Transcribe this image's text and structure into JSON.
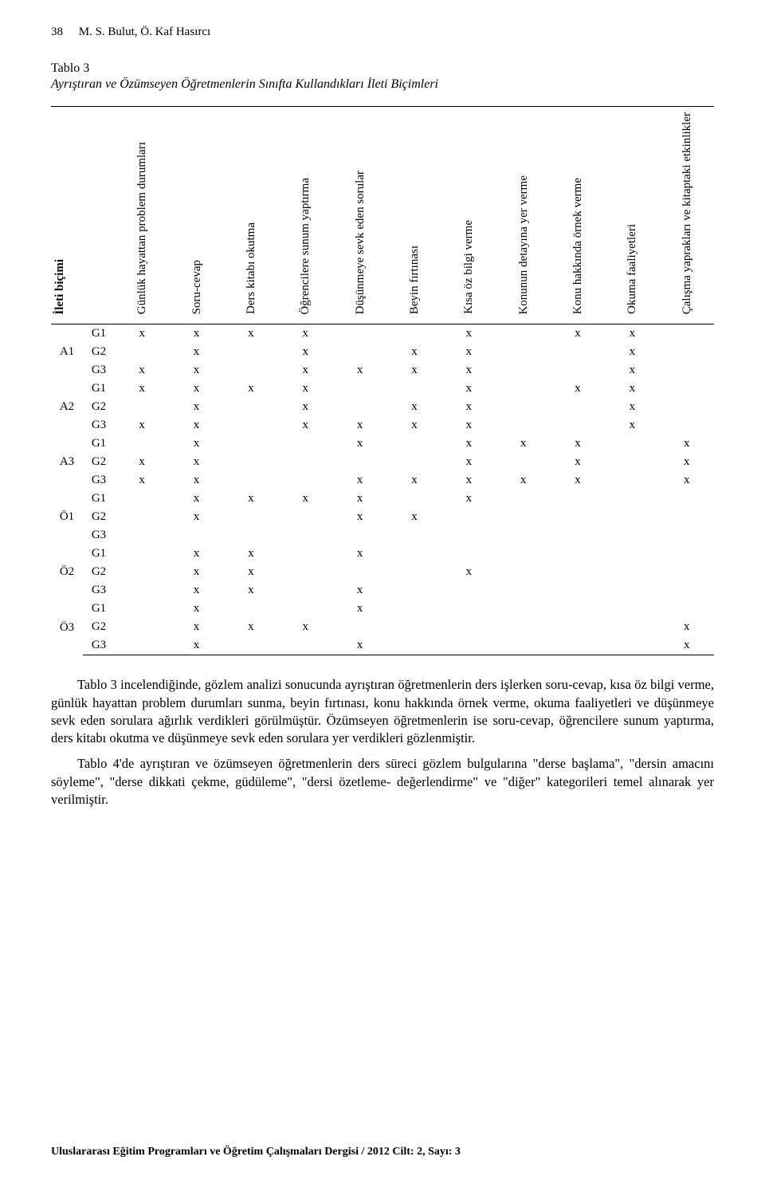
{
  "header": {
    "page_number": "38",
    "authors": "M. S. Bulut, Ö. Kaf Hasırcı"
  },
  "table": {
    "label": "Tablo 3",
    "title": "Ayrıştıran ve Özümseyen Öğretmenlerin Sınıfta Kullandıkları İleti Biçimleri",
    "first_header": "İleti biçimi",
    "columns": [
      "Günlük hayattan problem durumları",
      "Soru-cevap",
      "Ders kitabı okutma",
      "Öğrencilere sunum yaptırma",
      "Düşünmeye sevk eden sorular",
      "Beyin fırtınası",
      "Kısa öz bilgi verme",
      "Konunun detayına yer verme",
      "Konu hakkında örnek verme",
      "Okuma faaliyetleri",
      "Çalışma yaprakları ve kitaptaki etkinlikler"
    ],
    "groups": [
      {
        "id": "A1",
        "rows": [
          {
            "sub": "G1",
            "cells": [
              "x",
              "x",
              "x",
              "x",
              "",
              "",
              "x",
              "",
              "x",
              "x",
              ""
            ]
          },
          {
            "sub": "G2",
            "cells": [
              "",
              "x",
              "",
              "x",
              "",
              "x",
              "x",
              "",
              "",
              "x",
              ""
            ]
          },
          {
            "sub": "G3",
            "cells": [
              "x",
              "x",
              "",
              "x",
              "x",
              "x",
              "x",
              "",
              "",
              "x",
              ""
            ]
          }
        ]
      },
      {
        "id": "A2",
        "rows": [
          {
            "sub": "G1",
            "cells": [
              "x",
              "x",
              "x",
              "x",
              "",
              "",
              "x",
              "",
              "x",
              "x",
              ""
            ]
          },
          {
            "sub": "G2",
            "cells": [
              "",
              "x",
              "",
              "x",
              "",
              "x",
              "x",
              "",
              "",
              "x",
              ""
            ]
          },
          {
            "sub": "G3",
            "cells": [
              "x",
              "x",
              "",
              "x",
              "x",
              "x",
              "x",
              "",
              "",
              "x",
              ""
            ]
          }
        ]
      },
      {
        "id": "A3",
        "rows": [
          {
            "sub": "G1",
            "cells": [
              "",
              "x",
              "",
              "",
              "x",
              "",
              "x",
              "x",
              "x",
              "",
              "x"
            ]
          },
          {
            "sub": "G2",
            "cells": [
              "x",
              "x",
              "",
              "",
              "",
              "",
              "x",
              "",
              "x",
              "",
              "x"
            ]
          },
          {
            "sub": "G3",
            "cells": [
              "x",
              "x",
              "",
              "",
              "x",
              "x",
              "x",
              "x",
              "x",
              "",
              "x"
            ]
          }
        ]
      },
      {
        "id": "Ö1",
        "rows": [
          {
            "sub": "G1",
            "cells": [
              "",
              "x",
              "x",
              "x",
              "x",
              "",
              "x",
              "",
              "",
              "",
              ""
            ]
          },
          {
            "sub": "G2",
            "cells": [
              "",
              "x",
              "",
              "",
              "x",
              "x",
              "",
              "",
              "",
              "",
              ""
            ]
          },
          {
            "sub": "G3",
            "cells": [
              "",
              "",
              "",
              "",
              "",
              "",
              "",
              "",
              "",
              "",
              ""
            ]
          }
        ]
      },
      {
        "id": "Ö2",
        "rows": [
          {
            "sub": "G1",
            "cells": [
              "",
              "x",
              "x",
              "",
              "x",
              "",
              "",
              "",
              "",
              "",
              ""
            ]
          },
          {
            "sub": "G2",
            "cells": [
              "",
              "x",
              "x",
              "",
              "",
              "",
              "x",
              "",
              "",
              "",
              ""
            ]
          },
          {
            "sub": "G3",
            "cells": [
              "",
              "x",
              "x",
              "",
              "x",
              "",
              "",
              "",
              "",
              "",
              ""
            ]
          }
        ]
      },
      {
        "id": "Ö3",
        "rows": [
          {
            "sub": "G1",
            "cells": [
              "",
              "x",
              "",
              "",
              "x",
              "",
              "",
              "",
              "",
              "",
              ""
            ]
          },
          {
            "sub": "G2",
            "cells": [
              "",
              "x",
              "x",
              "x",
              "",
              "",
              "",
              "",
              "",
              "",
              "x"
            ]
          },
          {
            "sub": "G3",
            "cells": [
              "",
              "x",
              "",
              "",
              "x",
              "",
              "",
              "",
              "",
              "",
              "x"
            ]
          }
        ]
      }
    ],
    "mark": "x"
  },
  "paragraphs": [
    "Tablo 3 incelendiğinde, gözlem analizi sonucunda ayrıştıran öğretmenlerin ders işlerken soru-cevap, kısa öz bilgi verme, günlük hayattan problem durumları sunma, beyin fırtınası, konu hakkında örnek verme, okuma faaliyetleri ve düşünmeye sevk eden sorulara ağırlık verdikleri görülmüştür. Özümseyen öğretmenlerin ise soru-cevap, öğrencilere sunum yaptırma, ders kitabı okutma ve düşünmeye sevk eden sorulara yer verdikleri gözlenmiştir.",
    "Tablo 4'de ayrıştıran ve özümseyen öğretmenlerin ders süreci gözlem bulgularına \"derse başlama\", \"dersin amacını söyleme\", \"derse dikkati çekme, güdüleme\", \"dersi özetleme- değerlendirme\" ve \"diğer\" kategorileri temel alınarak yer verilmiştir."
  ],
  "footer": "Uluslararası Eğitim Programları ve Öğretim Çalışmaları Dergisi / 2012 Cilt: 2, Sayı: 3"
}
